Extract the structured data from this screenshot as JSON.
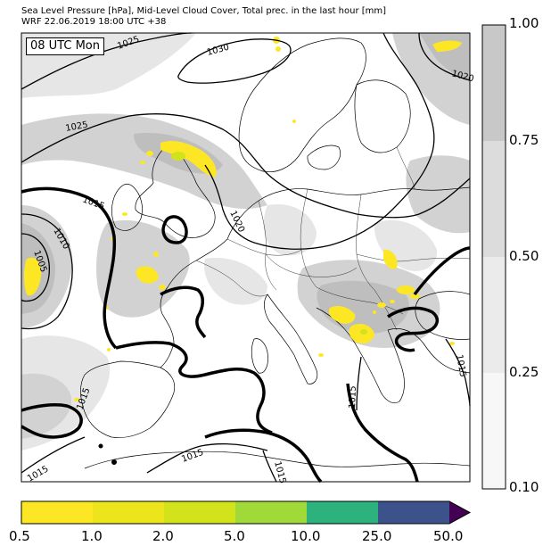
{
  "header": {
    "title": "Sea Level Pressure [hPa], Mid-Level Cloud Cover, Total prec. in the last hour [mm]",
    "subtitle": "WRF 22.06.2019 18:00 UTC +38"
  },
  "map": {
    "time_label": "08 UTC Mon",
    "isobar_labels": [
      "1025",
      "1030",
      "1020",
      "1025",
      "1015",
      "1010",
      "1005",
      "1020",
      "1015",
      "1015",
      "1015",
      "1015",
      "1015",
      "1015"
    ],
    "colors": {
      "sea": "#ffffff",
      "land_border": "#000000",
      "cloud_light": "#e6e6e6",
      "cloud_mid": "#d2d2d2",
      "cloud_dark": "#bebebe",
      "precip": "#fde725"
    }
  },
  "cloud_colorbar": {
    "ticks": [
      "1.00",
      "0.75",
      "0.50",
      "0.25",
      "0.10"
    ],
    "colors": [
      "#c8c8c8",
      "#dcdcdc",
      "#ebebeb",
      "#f7f7f7"
    ]
  },
  "precip_colorbar": {
    "ticks": [
      "0.5",
      "1.0",
      "2.0",
      "5.0",
      "10.0",
      "25.0",
      "50.0"
    ],
    "colors": [
      "#fde725",
      "#ece51b",
      "#d2e21b",
      "#a0da39",
      "#2db27d",
      "#3b528b",
      "#440154"
    ]
  }
}
